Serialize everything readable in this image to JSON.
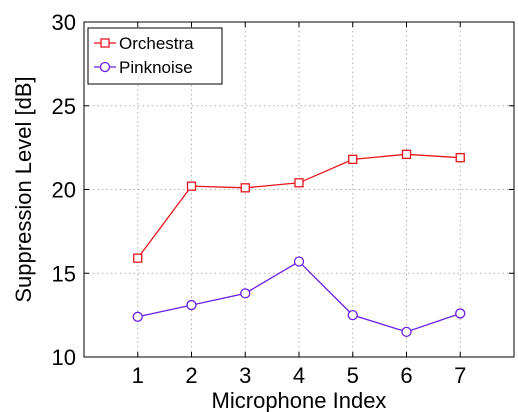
{
  "chart_data": {
    "type": "line",
    "title": "",
    "xlabel": "Microphone Index",
    "ylabel": "Suppression Level [dB]",
    "x": [
      1,
      2,
      3,
      4,
      5,
      6,
      7
    ],
    "xlim": [
      0,
      8
    ],
    "ylim": [
      10,
      30
    ],
    "xticks": [
      1,
      2,
      3,
      4,
      5,
      6,
      7
    ],
    "yticks": [
      10,
      15,
      20,
      25,
      30
    ],
    "grid": true,
    "legend": "top-left",
    "series": [
      {
        "name": "Orchestra",
        "values": [
          15.9,
          20.2,
          20.1,
          20.4,
          21.8,
          22.1,
          21.9
        ],
        "color": "#e8141c",
        "marker": "square"
      },
      {
        "name": "Pinknoise",
        "values": [
          12.4,
          13.1,
          13.8,
          15.7,
          12.5,
          11.5,
          12.6
        ],
        "color": "#6a1fe6",
        "marker": "circle"
      }
    ]
  }
}
